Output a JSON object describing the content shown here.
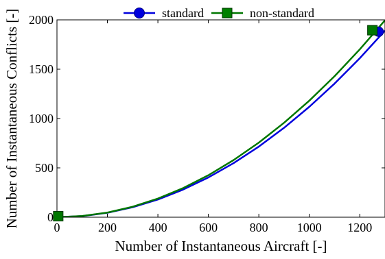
{
  "chart_data": {
    "type": "line",
    "xlabel": "Number of Instantaneous Aircraft [-]",
    "ylabel": "Number of Instantaneous Conflicts [-]",
    "xlim": [
      0,
      1300
    ],
    "ylim": [
      0,
      2000
    ],
    "xticks": [
      "0",
      "200",
      "400",
      "600",
      "800",
      "1000",
      "1200"
    ],
    "yticks": [
      "0",
      "500",
      "1000",
      "1500",
      "2000"
    ],
    "grid": false,
    "legend_position": "top-center",
    "series": [
      {
        "name": "standard",
        "color": "#0000dd",
        "marker": "circle",
        "x": [
          0,
          100,
          200,
          300,
          400,
          500,
          600,
          700,
          800,
          900,
          1000,
          1100,
          1200,
          1300
        ],
        "y": [
          0,
          11,
          45,
          101,
          179,
          280,
          403,
          548,
          716,
          906,
          1119,
          1354,
          1611,
          1891
        ],
        "marker_points": [
          [
            1275,
            1880
          ]
        ]
      },
      {
        "name": "non-standard",
        "color": "#007700",
        "marker": "square",
        "x": [
          0,
          100,
          200,
          300,
          400,
          500,
          600,
          700,
          800,
          900,
          1000,
          1100,
          1200,
          1300
        ],
        "y": [
          0,
          12,
          47,
          106,
          189,
          295,
          425,
          579,
          756,
          957,
          1181,
          1429,
          1701,
          1996
        ],
        "marker_points": [
          [
            5,
            10
          ],
          [
            1250,
            1895
          ]
        ]
      }
    ]
  }
}
